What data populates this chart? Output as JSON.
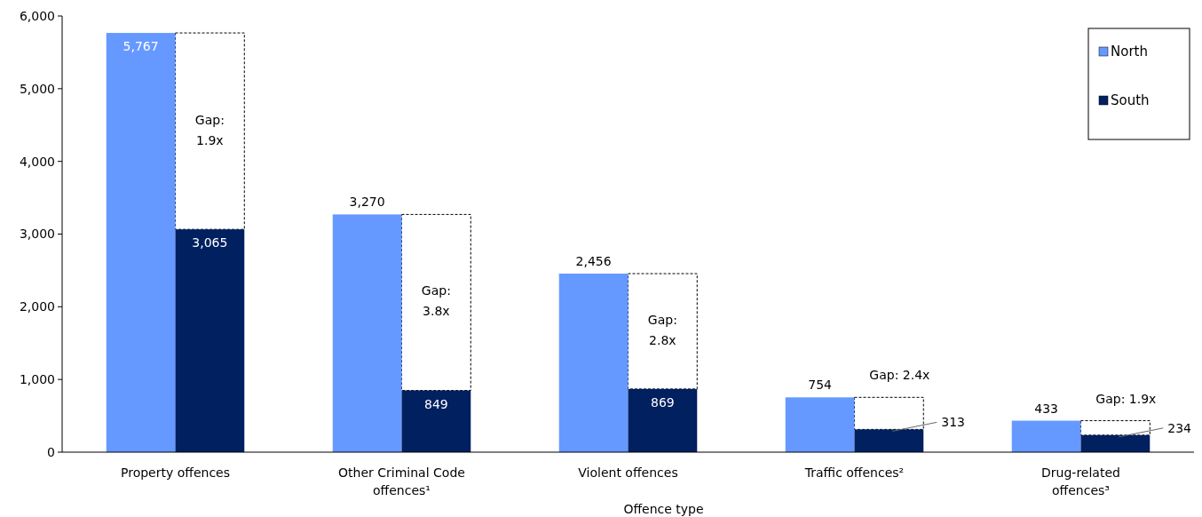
{
  "chart_data": {
    "type": "bar",
    "xlabel": "Offence type",
    "categories": [
      "Property offences",
      "Other Criminal Code offences¹",
      "Violent offences",
      "Traffic offences²",
      "Drug-related offences³"
    ],
    "series": [
      {
        "name": "North",
        "color": "#6699ff",
        "values": [
          5767,
          3270,
          2456,
          754,
          433
        ],
        "value_labels": [
          "5,767",
          "3,270",
          "2,456",
          "754",
          "433"
        ]
      },
      {
        "name": "South",
        "color": "#002060",
        "values": [
          3065,
          849,
          869,
          313,
          234
        ],
        "value_labels": [
          "3,065",
          "849",
          "869",
          "313",
          "234"
        ]
      }
    ],
    "ylim": [
      0,
      6000
    ],
    "yticks": [
      {
        "value": 0,
        "label": "0"
      },
      {
        "value": 1000,
        "label": "1,000"
      },
      {
        "value": 2000,
        "label": "2,000"
      },
      {
        "value": 3000,
        "label": "3,000"
      },
      {
        "value": 4000,
        "label": "4,000"
      },
      {
        "value": 5000,
        "label": "5,000"
      },
      {
        "value": 6000,
        "label": "6,000"
      }
    ],
    "legend": "top right",
    "grid": false,
    "annotations": [
      "Gap: 1.9x",
      "Gap: 3.8x",
      "Gap: 2.8x",
      "Gap: 2.4x",
      "Gap: 1.9x"
    ]
  }
}
